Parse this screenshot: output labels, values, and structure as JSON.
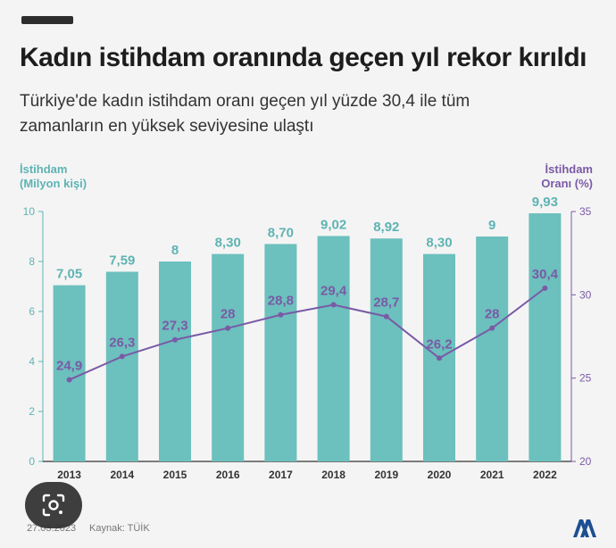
{
  "header": {
    "title": "Kadın istihdam oranında geçen yıl rekor kırıldı",
    "subtitle": "Türkiye'de kadın istihdam oranı geçen yıl yüzde 30,4 ile tüm zamanların en yüksek seviyesine ulaştı"
  },
  "axes": {
    "left_label_line1": "İstihdam",
    "left_label_line2": "(Milyon kişi)",
    "right_label_line1": "İstihdam",
    "right_label_line2": "Oranı (%)"
  },
  "footer": {
    "date": "27.03.2023",
    "source": "Kaynak: TÜİK",
    "logo_icon": "aa-logo-icon"
  },
  "colors": {
    "bar": "#6cc0bd",
    "line": "#7a5aa6",
    "left_axis": "#5fb3b3",
    "right_axis": "#7a5aa6"
  },
  "chart_data": {
    "type": "bar",
    "categories": [
      "2013",
      "2014",
      "2015",
      "2016",
      "2017",
      "2018",
      "2019",
      "2020",
      "2021",
      "2022"
    ],
    "series": [
      {
        "type": "bar",
        "axis": "left",
        "values": [
          7.05,
          7.59,
          8,
          8.3,
          8.7,
          9.02,
          8.92,
          8.3,
          9,
          9.93
        ],
        "labels": [
          "7,05",
          "7,59",
          "8",
          "8,30",
          "8,70",
          "9,02",
          "8,92",
          "8,30",
          "9",
          "9,93"
        ]
      },
      {
        "type": "line",
        "axis": "right",
        "values": [
          24.9,
          26.3,
          27.3,
          28,
          28.8,
          29.4,
          28.7,
          26.2,
          28,
          30.4
        ],
        "labels": [
          "24,9",
          "26,3",
          "27,3",
          "28",
          "28,8",
          "29,4",
          "28,7",
          "26,2",
          "28",
          "30,4"
        ]
      }
    ],
    "y_left": {
      "range": [
        0,
        10
      ],
      "ticks": [
        0,
        2,
        4,
        6,
        8,
        10
      ]
    },
    "y_right": {
      "range": [
        20,
        35
      ],
      "ticks": [
        20,
        25,
        30,
        35
      ]
    },
    "grid": false,
    "legend": "none"
  }
}
